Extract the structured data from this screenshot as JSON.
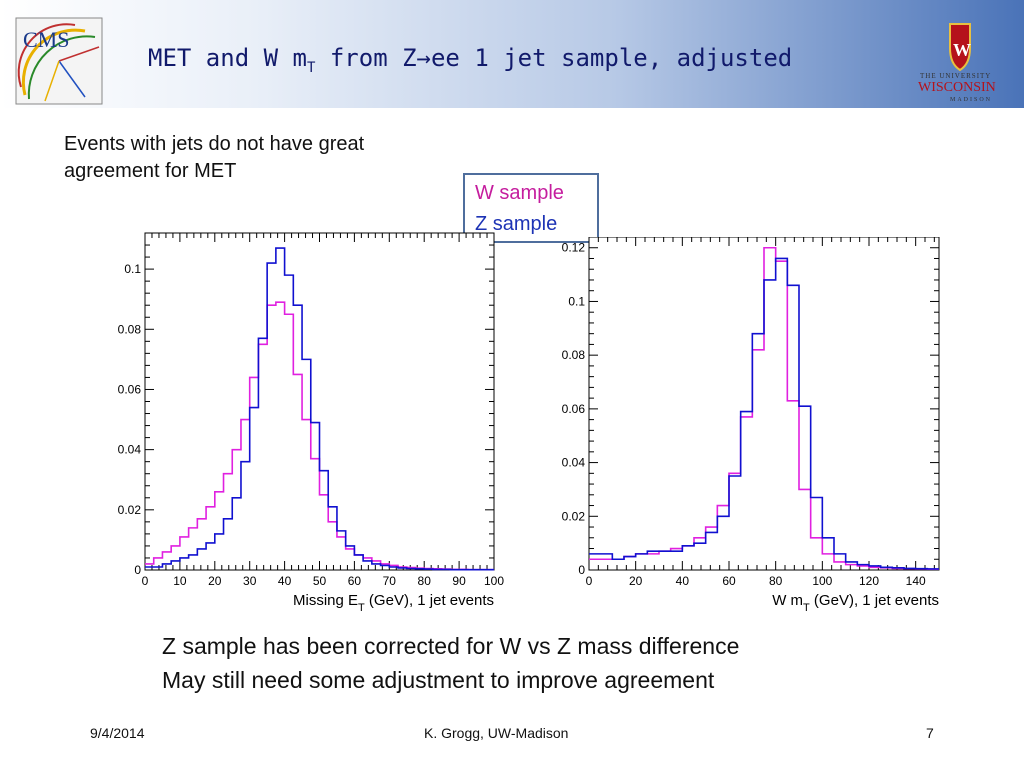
{
  "header": {
    "title_pre": "MET and W m",
    "title_sub": "T",
    "title_post": " from Z→ee 1 jet sample, adjusted",
    "cms_logo_text": "CMS",
    "uw_line1": "THE UNIVERSITY",
    "uw_line2": "WISCONSIN",
    "uw_line3": "MADISON"
  },
  "intro": {
    "line1": "Events with jets do not have great",
    "line2": "agreement for MET"
  },
  "legend": {
    "w_label": "W sample",
    "z_label": "Z sample",
    "w_color": "#e020e0",
    "z_color": "#1010d0"
  },
  "notes": {
    "line1": "Z sample has been corrected for W vs Z mass difference",
    "line2": "May still need some adjustment to improve agreement"
  },
  "footer": {
    "date": "9/4/2014",
    "author": "K. Grogg, UW-Madison",
    "page": "7"
  },
  "chart_data": [
    {
      "type": "line",
      "step": true,
      "xlabel_pre": "Missing E",
      "xlabel_sub": "T",
      "xlabel_post": " (GeV), 1 jet events",
      "xlim": [
        0,
        100
      ],
      "ylim": [
        0,
        0.112
      ],
      "xticks": [
        0,
        10,
        20,
        30,
        40,
        50,
        60,
        70,
        80,
        90,
        100
      ],
      "xtick_labels": [
        "0",
        "10",
        "20",
        "30",
        "40",
        "50",
        "60",
        "70",
        "80",
        "90",
        "100"
      ],
      "yticks": [
        0,
        0.02,
        0.04,
        0.06,
        0.08,
        0.1
      ],
      "ytick_labels": [
        "0",
        "0.02",
        "0.04",
        "0.06",
        "0.08",
        "0.1"
      ],
      "bin_edges": [
        0,
        2.5,
        5,
        7.5,
        10,
        12.5,
        15,
        17.5,
        20,
        22.5,
        25,
        27.5,
        30,
        32.5,
        35,
        37.5,
        40,
        42.5,
        45,
        47.5,
        50,
        52.5,
        55,
        57.5,
        60,
        62.5,
        65,
        67.5,
        70,
        72.5,
        75,
        77.5,
        80,
        82.5,
        85,
        87.5,
        90,
        92.5,
        95,
        97.5,
        100
      ],
      "series": [
        {
          "name": "W sample",
          "color": "#e020e0",
          "values": [
            0.002,
            0.004,
            0.006,
            0.008,
            0.011,
            0.014,
            0.017,
            0.021,
            0.026,
            0.032,
            0.04,
            0.05,
            0.064,
            0.075,
            0.088,
            0.089,
            0.085,
            0.065,
            0.05,
            0.037,
            0.025,
            0.016,
            0.011,
            0.007,
            0.005,
            0.004,
            0.003,
            0.002,
            0.0015,
            0.001,
            0.0008,
            0.0006,
            0.0005,
            0.0004,
            0.0003,
            0.0002,
            0.0002,
            0.0001,
            0.0001,
            0.0001
          ]
        },
        {
          "name": "Z sample",
          "color": "#1010d0",
          "values": [
            0.001,
            0.001,
            0.002,
            0.003,
            0.004,
            0.005,
            0.007,
            0.009,
            0.012,
            0.017,
            0.024,
            0.036,
            0.054,
            0.077,
            0.102,
            0.107,
            0.098,
            0.088,
            0.07,
            0.049,
            0.033,
            0.021,
            0.013,
            0.008,
            0.005,
            0.003,
            0.002,
            0.0015,
            0.001,
            0.0007,
            0.0005,
            0.0004,
            0.0003,
            0.0002,
            0.0002,
            0.0001,
            0.0001,
            0.0001,
            0.0001,
            0.0001
          ]
        }
      ]
    },
    {
      "type": "line",
      "step": true,
      "xlabel_pre": "W m",
      "xlabel_sub": "T",
      "xlabel_post": " (GeV), 1 jet events",
      "xlim": [
        0,
        150
      ],
      "ylim": [
        0,
        0.124
      ],
      "xticks": [
        0,
        20,
        40,
        60,
        80,
        100,
        120,
        140
      ],
      "xtick_labels": [
        "0",
        "20",
        "40",
        "60",
        "80",
        "100",
        "120",
        "140"
      ],
      "yticks": [
        0,
        0.02,
        0.04,
        0.06,
        0.08,
        0.1,
        0.12
      ],
      "ytick_labels": [
        "0",
        "0.02",
        "0.04",
        "0.06",
        "0.08",
        "0.1",
        "0.12"
      ],
      "bin_edges": [
        0,
        5,
        10,
        15,
        20,
        25,
        30,
        35,
        40,
        45,
        50,
        55,
        60,
        65,
        70,
        75,
        80,
        85,
        90,
        95,
        100,
        105,
        110,
        115,
        120,
        125,
        130,
        135,
        140,
        145,
        150
      ],
      "series": [
        {
          "name": "W sample",
          "color": "#e020e0",
          "values": [
            0.004,
            0.004,
            0.004,
            0.005,
            0.006,
            0.006,
            0.007,
            0.008,
            0.009,
            0.012,
            0.016,
            0.024,
            0.036,
            0.057,
            0.082,
            0.12,
            0.115,
            0.063,
            0.03,
            0.012,
            0.006,
            0.003,
            0.002,
            0.0015,
            0.001,
            0.0008,
            0.0006,
            0.0005,
            0.0004,
            0.0003
          ]
        },
        {
          "name": "Z sample",
          "color": "#1010d0",
          "values": [
            0.006,
            0.006,
            0.004,
            0.005,
            0.006,
            0.007,
            0.007,
            0.007,
            0.009,
            0.01,
            0.014,
            0.02,
            0.035,
            0.059,
            0.088,
            0.108,
            0.116,
            0.106,
            0.061,
            0.027,
            0.012,
            0.006,
            0.003,
            0.002,
            0.0015,
            0.001,
            0.0008,
            0.0006,
            0.0005,
            0.0004
          ]
        }
      ]
    }
  ]
}
